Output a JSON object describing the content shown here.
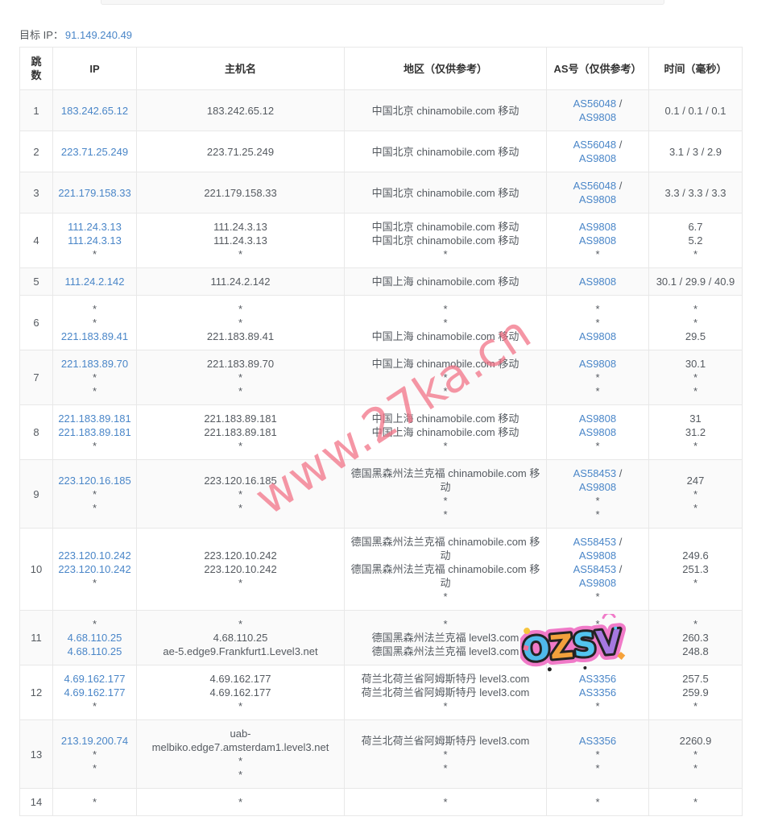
{
  "page": {
    "target_ip_label": "目标 IP：",
    "target_ip": "91.149.240.49"
  },
  "watermark": {
    "text": "www.27ka.cn",
    "color": "#f16d82"
  },
  "sticker": {
    "text": "OZSV",
    "outline_color": "#f07ac8",
    "letters": [
      {
        "ch": "O",
        "color": "#4fb9ea"
      },
      {
        "ch": "Z",
        "color": "#f2a13c"
      },
      {
        "ch": "S",
        "color": "#52c4ef"
      },
      {
        "ch": "V",
        "color": "#a678e0"
      }
    ]
  },
  "table": {
    "headers": [
      "跳数",
      "IP",
      "主机名",
      "地区（仅供参考）",
      "AS号（仅供参考）",
      "时间（毫秒）"
    ],
    "link_color": "#4a86c8",
    "rows": [
      {
        "hop": "1",
        "ip": [
          [
            [
              "183.242.65.12",
              1
            ]
          ]
        ],
        "host": [
          [
            [
              "183.242.65.12",
              0
            ]
          ]
        ],
        "region": [
          [
            [
              "中国北京 chinamobile.com 移动",
              0
            ]
          ]
        ],
        "asn": [
          [
            [
              "AS56048",
              1
            ],
            [
              " /",
              0
            ]
          ],
          [
            [
              "AS9808",
              1
            ]
          ]
        ],
        "time": [
          [
            [
              "0.1 / 0.1 / 0.1",
              0
            ]
          ]
        ]
      },
      {
        "hop": "2",
        "ip": [
          [
            [
              "223.71.25.249",
              1
            ]
          ]
        ],
        "host": [
          [
            [
              "223.71.25.249",
              0
            ]
          ]
        ],
        "region": [
          [
            [
              "中国北京 chinamobile.com 移动",
              0
            ]
          ]
        ],
        "asn": [
          [
            [
              "AS56048",
              1
            ],
            [
              " /",
              0
            ]
          ],
          [
            [
              "AS9808",
              1
            ]
          ]
        ],
        "time": [
          [
            [
              "3.1 / 3 / 2.9",
              0
            ]
          ]
        ]
      },
      {
        "hop": "3",
        "ip": [
          [
            [
              "221.179.158.33",
              1
            ]
          ]
        ],
        "host": [
          [
            [
              "221.179.158.33",
              0
            ]
          ]
        ],
        "region": [
          [
            [
              "中国北京 chinamobile.com 移动",
              0
            ]
          ]
        ],
        "asn": [
          [
            [
              "AS56048",
              1
            ],
            [
              " /",
              0
            ]
          ],
          [
            [
              "AS9808",
              1
            ]
          ]
        ],
        "time": [
          [
            [
              "3.3 / 3.3 / 3.3",
              0
            ]
          ]
        ]
      },
      {
        "hop": "4",
        "ip": [
          [
            [
              "111.24.3.13",
              1
            ]
          ],
          [
            [
              "111.24.3.13",
              1
            ]
          ],
          [
            [
              "*",
              0
            ]
          ]
        ],
        "host": [
          [
            [
              "111.24.3.13",
              0
            ]
          ],
          [
            [
              "111.24.3.13",
              0
            ]
          ],
          [
            [
              "*",
              0
            ]
          ]
        ],
        "region": [
          [
            [
              "中国北京 chinamobile.com 移动",
              0
            ]
          ],
          [
            [
              "中国北京 chinamobile.com 移动",
              0
            ]
          ],
          [
            [
              "*",
              0
            ]
          ]
        ],
        "asn": [
          [
            [
              "AS9808",
              1
            ]
          ],
          [
            [
              "AS9808",
              1
            ]
          ],
          [
            [
              "*",
              0
            ]
          ]
        ],
        "time": [
          [
            [
              "6.7",
              0
            ]
          ],
          [
            [
              "5.2",
              0
            ]
          ],
          [
            [
              "*",
              0
            ]
          ]
        ]
      },
      {
        "hop": "5",
        "ip": [
          [
            [
              "111.24.2.142",
              1
            ]
          ]
        ],
        "host": [
          [
            [
              "111.24.2.142",
              0
            ]
          ]
        ],
        "region": [
          [
            [
              "中国上海 chinamobile.com 移动",
              0
            ]
          ]
        ],
        "asn": [
          [
            [
              "AS9808",
              1
            ]
          ]
        ],
        "time": [
          [
            [
              "30.1 / 29.9 / 40.9",
              0
            ]
          ]
        ]
      },
      {
        "hop": "6",
        "ip": [
          [
            [
              "*",
              0
            ]
          ],
          [
            [
              "*",
              0
            ]
          ],
          [
            [
              "221.183.89.41",
              1
            ]
          ]
        ],
        "host": [
          [
            [
              "*",
              0
            ]
          ],
          [
            [
              "*",
              0
            ]
          ],
          [
            [
              "221.183.89.41",
              0
            ]
          ]
        ],
        "region": [
          [
            [
              "*",
              0
            ]
          ],
          [
            [
              "*",
              0
            ]
          ],
          [
            [
              "中国上海 chinamobile.com 移动",
              0
            ]
          ]
        ],
        "asn": [
          [
            [
              "*",
              0
            ]
          ],
          [
            [
              "*",
              0
            ]
          ],
          [
            [
              "AS9808",
              1
            ]
          ]
        ],
        "time": [
          [
            [
              "*",
              0
            ]
          ],
          [
            [
              "*",
              0
            ]
          ],
          [
            [
              "29.5",
              0
            ]
          ]
        ]
      },
      {
        "hop": "7",
        "ip": [
          [
            [
              "221.183.89.70",
              1
            ]
          ],
          [
            [
              "*",
              0
            ]
          ],
          [
            [
              "*",
              0
            ]
          ]
        ],
        "host": [
          [
            [
              "221.183.89.70",
              0
            ]
          ],
          [
            [
              "*",
              0
            ]
          ],
          [
            [
              "*",
              0
            ]
          ]
        ],
        "region": [
          [
            [
              "中国上海 chinamobile.com 移动",
              0
            ]
          ],
          [
            [
              "*",
              0
            ]
          ],
          [
            [
              "*",
              0
            ]
          ]
        ],
        "asn": [
          [
            [
              "AS9808",
              1
            ]
          ],
          [
            [
              "*",
              0
            ]
          ],
          [
            [
              "*",
              0
            ]
          ]
        ],
        "time": [
          [
            [
              "30.1",
              0
            ]
          ],
          [
            [
              "*",
              0
            ]
          ],
          [
            [
              "*",
              0
            ]
          ]
        ]
      },
      {
        "hop": "8",
        "ip": [
          [
            [
              "221.183.89.181",
              1
            ]
          ],
          [
            [
              "221.183.89.181",
              1
            ]
          ],
          [
            [
              "*",
              0
            ]
          ]
        ],
        "host": [
          [
            [
              "221.183.89.181",
              0
            ]
          ],
          [
            [
              "221.183.89.181",
              0
            ]
          ],
          [
            [
              "*",
              0
            ]
          ]
        ],
        "region": [
          [
            [
              "中国上海 chinamobile.com 移动",
              0
            ]
          ],
          [
            [
              "中国上海 chinamobile.com 移动",
              0
            ]
          ],
          [
            [
              "*",
              0
            ]
          ]
        ],
        "asn": [
          [
            [
              "AS9808",
              1
            ]
          ],
          [
            [
              "AS9808",
              1
            ]
          ],
          [
            [
              "*",
              0
            ]
          ]
        ],
        "time": [
          [
            [
              "31",
              0
            ]
          ],
          [
            [
              "31.2",
              0
            ]
          ],
          [
            [
              "*",
              0
            ]
          ]
        ]
      },
      {
        "hop": "9",
        "ip": [
          [
            [
              "223.120.16.185",
              1
            ]
          ],
          [
            [
              "*",
              0
            ]
          ],
          [
            [
              "*",
              0
            ]
          ]
        ],
        "host": [
          [
            [
              "223.120.16.185",
              0
            ]
          ],
          [
            [
              "*",
              0
            ]
          ],
          [
            [
              "*",
              0
            ]
          ]
        ],
        "region": [
          [
            [
              "德国黑森州法兰克福 chinamobile.com 移动",
              0
            ]
          ],
          [
            [
              "*",
              0
            ]
          ],
          [
            [
              "*",
              0
            ]
          ]
        ],
        "asn": [
          [
            [
              "AS58453",
              1
            ],
            [
              " /",
              0
            ]
          ],
          [
            [
              "AS9808",
              1
            ]
          ],
          [
            [
              "*",
              0
            ]
          ],
          [
            [
              "*",
              0
            ]
          ]
        ],
        "time": [
          [
            [
              "247",
              0
            ]
          ],
          [
            [
              "*",
              0
            ]
          ],
          [
            [
              "*",
              0
            ]
          ]
        ]
      },
      {
        "hop": "10",
        "ip": [
          [
            [
              "223.120.10.242",
              1
            ]
          ],
          [
            [
              "223.120.10.242",
              1
            ]
          ],
          [
            [
              "*",
              0
            ]
          ]
        ],
        "host": [
          [
            [
              "223.120.10.242",
              0
            ]
          ],
          [
            [
              "223.120.10.242",
              0
            ]
          ],
          [
            [
              "*",
              0
            ]
          ]
        ],
        "region": [
          [
            [
              "德国黑森州法兰克福 chinamobile.com 移动",
              0
            ]
          ],
          [
            [
              "德国黑森州法兰克福 chinamobile.com 移动",
              0
            ]
          ],
          [
            [
              "*",
              0
            ]
          ]
        ],
        "asn": [
          [
            [
              "AS58453",
              1
            ],
            [
              " /",
              0
            ]
          ],
          [
            [
              "AS9808",
              1
            ]
          ],
          [
            [
              "AS58453",
              1
            ],
            [
              " /",
              0
            ]
          ],
          [
            [
              "AS9808",
              1
            ]
          ],
          [
            [
              "*",
              0
            ]
          ]
        ],
        "time": [
          [
            [
              "249.6",
              0
            ]
          ],
          [
            [
              "251.3",
              0
            ]
          ],
          [
            [
              "*",
              0
            ]
          ]
        ]
      },
      {
        "hop": "11",
        "ip": [
          [
            [
              "*",
              0
            ]
          ],
          [
            [
              "4.68.110.25",
              1
            ]
          ],
          [
            [
              "4.68.110.25",
              1
            ]
          ]
        ],
        "host": [
          [
            [
              "*",
              0
            ]
          ],
          [
            [
              "4.68.110.25",
              0
            ]
          ],
          [
            [
              "ae-5.edge9.Frankfurt1.Level3.net",
              0
            ]
          ]
        ],
        "region": [
          [
            [
              "*",
              0
            ]
          ],
          [
            [
              "德国黑森州法兰克福 level3.com",
              0
            ]
          ],
          [
            [
              "德国黑森州法兰克福 level3.com",
              0
            ]
          ]
        ],
        "asn": [
          [
            [
              "*",
              0
            ]
          ],
          [
            [
              "AS3356",
              1
            ]
          ],
          [
            [
              "AS3356",
              1
            ]
          ]
        ],
        "time": [
          [
            [
              "*",
              0
            ]
          ],
          [
            [
              "260.3",
              0
            ]
          ],
          [
            [
              "248.8",
              0
            ]
          ]
        ]
      },
      {
        "hop": "12",
        "ip": [
          [
            [
              "4.69.162.177",
              1
            ]
          ],
          [
            [
              "4.69.162.177",
              1
            ]
          ],
          [
            [
              "*",
              0
            ]
          ]
        ],
        "host": [
          [
            [
              "4.69.162.177",
              0
            ]
          ],
          [
            [
              "4.69.162.177",
              0
            ]
          ],
          [
            [
              "*",
              0
            ]
          ]
        ],
        "region": [
          [
            [
              "荷兰北荷兰省阿姆斯特丹 level3.com",
              0
            ]
          ],
          [
            [
              "荷兰北荷兰省阿姆斯特丹 level3.com",
              0
            ]
          ],
          [
            [
              "*",
              0
            ]
          ]
        ],
        "asn": [
          [
            [
              "AS3356",
              1
            ]
          ],
          [
            [
              "AS3356",
              1
            ]
          ],
          [
            [
              "*",
              0
            ]
          ]
        ],
        "time": [
          [
            [
              "257.5",
              0
            ]
          ],
          [
            [
              "259.9",
              0
            ]
          ],
          [
            [
              "*",
              0
            ]
          ]
        ]
      },
      {
        "hop": "13",
        "ip": [
          [
            [
              "213.19.200.74",
              1
            ]
          ],
          [
            [
              "*",
              0
            ]
          ],
          [
            [
              "*",
              0
            ]
          ]
        ],
        "host": [
          [
            [
              "uab-melbiko.edge7.amsterdam1.level3.net",
              0
            ]
          ],
          [
            [
              "*",
              0
            ]
          ],
          [
            [
              "*",
              0
            ]
          ]
        ],
        "region": [
          [
            [
              "荷兰北荷兰省阿姆斯特丹 level3.com",
              0
            ]
          ],
          [
            [
              "*",
              0
            ]
          ],
          [
            [
              "*",
              0
            ]
          ]
        ],
        "asn": [
          [
            [
              "AS3356",
              1
            ]
          ],
          [
            [
              "*",
              0
            ]
          ],
          [
            [
              "*",
              0
            ]
          ]
        ],
        "time": [
          [
            [
              "2260.9",
              0
            ]
          ],
          [
            [
              "*",
              0
            ]
          ],
          [
            [
              "*",
              0
            ]
          ]
        ]
      },
      {
        "hop": "14",
        "ip": [
          [
            [
              "*",
              0
            ]
          ]
        ],
        "host": [
          [
            [
              "*",
              0
            ]
          ]
        ],
        "region": [
          [
            [
              "*",
              0
            ]
          ]
        ],
        "asn": [
          [
            [
              "*",
              0
            ]
          ]
        ],
        "time": [
          [
            [
              "*",
              0
            ]
          ]
        ]
      }
    ]
  }
}
